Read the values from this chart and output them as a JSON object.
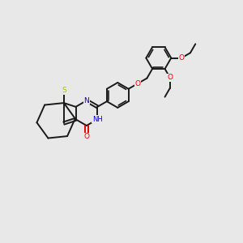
{
  "bg_color": "#e8e8e8",
  "bond_color": "#1a1a1a",
  "S_color": "#b8b800",
  "N_color": "#0000ee",
  "O_color": "#ee0000",
  "lw": 1.4,
  "lw_inner": 1.2,
  "fs": 6.5,
  "BL": 0.52,
  "figsize": [
    3.0,
    3.0
  ],
  "dpi": 100,
  "xlim": [
    0,
    10
  ],
  "ylim": [
    0,
    10
  ]
}
